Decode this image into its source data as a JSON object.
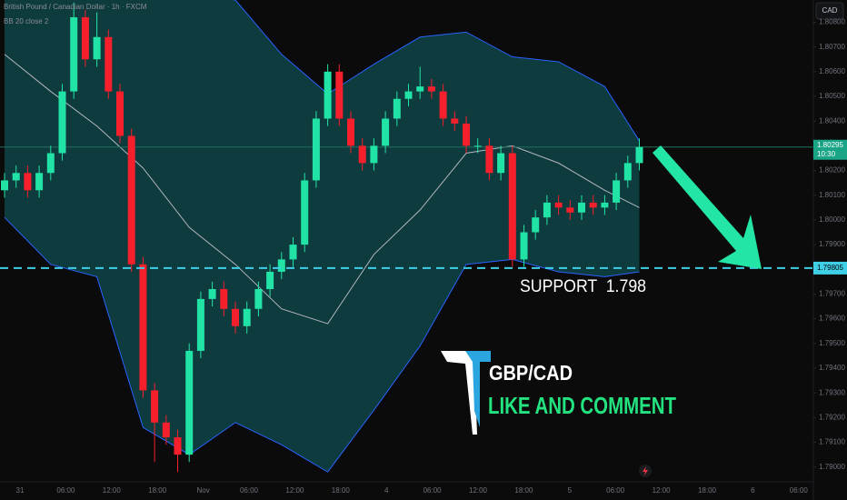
{
  "chart_data": {
    "type": "candlestick",
    "header": [
      "British Pound / Canadian Dollar · 1h · FXCM",
      "BB 20 close 2"
    ],
    "currency_button": "CAD",
    "up_color": "#22e3a6",
    "down_color": "#f5202c",
    "open": [
      1.8012,
      1.8016,
      1.8019,
      1.8012,
      1.8019,
      1.8027,
      1.8052,
      1.8082,
      1.8065,
      1.8074,
      1.8052,
      1.8034,
      1.7982,
      1.7931,
      1.7918,
      1.7912,
      1.7905,
      1.7947,
      1.7968,
      1.7972,
      1.7964,
      1.7957,
      1.7964,
      1.7972,
      1.7979,
      1.7984,
      1.799,
      1.8016,
      1.8041,
      1.806,
      1.8041,
      1.803,
      1.8023,
      1.803,
      1.8041,
      1.8049,
      1.8052,
      1.8054,
      1.8052,
      1.8041,
      1.8039,
      1.803,
      1.803,
      1.8019,
      1.8027,
      1.7984,
      1.7995,
      1.8001,
      1.8007,
      1.8005,
      1.8003,
      1.8007,
      1.8005,
      1.8007,
      1.8016,
      1.8023
    ],
    "high": [
      1.8019,
      1.8022,
      1.8022,
      1.8022,
      1.803,
      1.8055,
      1.8088,
      1.8085,
      1.8084,
      1.8077,
      1.8055,
      1.8037,
      1.7985,
      1.7934,
      1.7921,
      1.7915,
      1.795,
      1.7971,
      1.7975,
      1.7975,
      1.7967,
      1.7967,
      1.7975,
      1.7982,
      1.7987,
      1.7993,
      1.8019,
      1.8044,
      1.8063,
      1.8063,
      1.8044,
      1.8033,
      1.8033,
      1.8044,
      1.8052,
      1.8055,
      1.8062,
      1.8057,
      1.8055,
      1.8044,
      1.8042,
      1.8033,
      1.8033,
      1.803,
      1.803,
      1.7998,
      1.8004,
      1.801,
      1.801,
      1.8008,
      1.801,
      1.801,
      1.801,
      1.8019,
      1.8026,
      1.8033
    ],
    "low": [
      1.8009,
      1.8013,
      1.8009,
      1.8009,
      1.8016,
      1.8024,
      1.8049,
      1.8062,
      1.8062,
      1.8049,
      1.8031,
      1.7979,
      1.7928,
      1.7902,
      1.7909,
      1.7898,
      1.7902,
      1.7944,
      1.7965,
      1.7961,
      1.7954,
      1.7954,
      1.7961,
      1.7969,
      1.7976,
      1.7981,
      1.7987,
      1.8013,
      1.8038,
      1.8038,
      1.8027,
      1.802,
      1.802,
      1.8027,
      1.8038,
      1.8046,
      1.8049,
      1.8049,
      1.8038,
      1.8036,
      1.8027,
      1.8027,
      1.8016,
      1.8016,
      1.7981,
      1.7981,
      1.7992,
      1.7998,
      1.8002,
      1.8,
      1.8,
      1.8002,
      1.8002,
      1.8004,
      1.8013,
      1.802
    ],
    "close": [
      1.8016,
      1.8019,
      1.8012,
      1.8019,
      1.8027,
      1.8052,
      1.8082,
      1.8065,
      1.8074,
      1.8052,
      1.8034,
      1.7982,
      1.7931,
      1.7918,
      1.7912,
      1.7905,
      1.7947,
      1.7968,
      1.7972,
      1.7964,
      1.7957,
      1.7964,
      1.7972,
      1.7979,
      1.7984,
      1.799,
      1.8016,
      1.8041,
      1.806,
      1.8041,
      1.803,
      1.8023,
      1.803,
      1.8041,
      1.8049,
      1.8052,
      1.8054,
      1.8052,
      1.8041,
      1.8039,
      1.803,
      1.803,
      1.8019,
      1.8027,
      1.7984,
      1.7995,
      1.8001,
      1.8007,
      1.8005,
      1.8003,
      1.8007,
      1.8005,
      1.8007,
      1.8016,
      1.8023,
      1.80295
    ],
    "bands": {
      "x": [
        0,
        4,
        8,
        12,
        16,
        20,
        24,
        28,
        32,
        36,
        40,
        44,
        48,
        52,
        55
      ],
      "upper": [
        1.8093,
        1.8096,
        1.8095,
        1.8093,
        1.8091,
        1.8089,
        1.8067,
        1.8051,
        1.8063,
        1.8074,
        1.8076,
        1.8066,
        1.8064,
        1.8054,
        1.8032
      ],
      "basis": [
        1.8067,
        1.8052,
        1.8038,
        1.8021,
        1.7997,
        1.7982,
        1.7964,
        1.7958,
        1.7986,
        1.8004,
        1.8027,
        1.803,
        1.8023,
        1.8012,
        1.8005
      ],
      "lower": [
        1.8001,
        1.7982,
        1.7977,
        1.7916,
        1.7905,
        1.7918,
        1.7909,
        1.7898,
        1.7923,
        1.7949,
        1.7982,
        1.7984,
        1.7979,
        1.7977,
        1.7979
      ],
      "edge_color": "#2962ff",
      "basis_color": "#b2b5be",
      "fill": "#0e3b3e"
    },
    "ylim": [
      1.7894,
      1.8089
    ],
    "yticks": [
      {
        "value": 1.808,
        "label": "1.80800"
      },
      {
        "value": 1.807,
        "label": "1.80700"
      },
      {
        "value": 1.806,
        "label": "1.80600"
      },
      {
        "value": 1.805,
        "label": "1.80500"
      },
      {
        "value": 1.804,
        "label": "1.80400"
      },
      {
        "value": 1.802,
        "label": "1.80200"
      },
      {
        "value": 1.801,
        "label": "1.80100"
      },
      {
        "value": 1.8,
        "label": "1.80000"
      },
      {
        "value": 1.799,
        "label": "1.79900"
      },
      {
        "value": 1.797,
        "label": "1.79700"
      },
      {
        "value": 1.796,
        "label": "1.79600"
      },
      {
        "value": 1.795,
        "label": "1.79500"
      },
      {
        "value": 1.794,
        "label": "1.79400"
      },
      {
        "value": 1.793,
        "label": "1.79300"
      },
      {
        "value": 1.792,
        "label": "1.79200"
      },
      {
        "value": 1.791,
        "label": "1.79100"
      },
      {
        "value": 1.79,
        "label": "1.79000"
      }
    ],
    "x_labels": [
      "31",
      "06:00",
      "12:00",
      "18:00",
      "Nov",
      "06:00",
      "12:00",
      "18:00",
      "4",
      "06:00",
      "12:00",
      "18:00",
      "5",
      "06:00",
      "12:00",
      "18:00",
      "6",
      "06:00"
    ],
    "last_price": 1.80295,
    "countdown": "10:30",
    "support": {
      "value": 1.79805,
      "text": "SUPPORT  1.798",
      "color": "#3fd0e8"
    },
    "annotations": [
      "GBP/CAD",
      "LIKE AND COMMENT"
    ]
  }
}
